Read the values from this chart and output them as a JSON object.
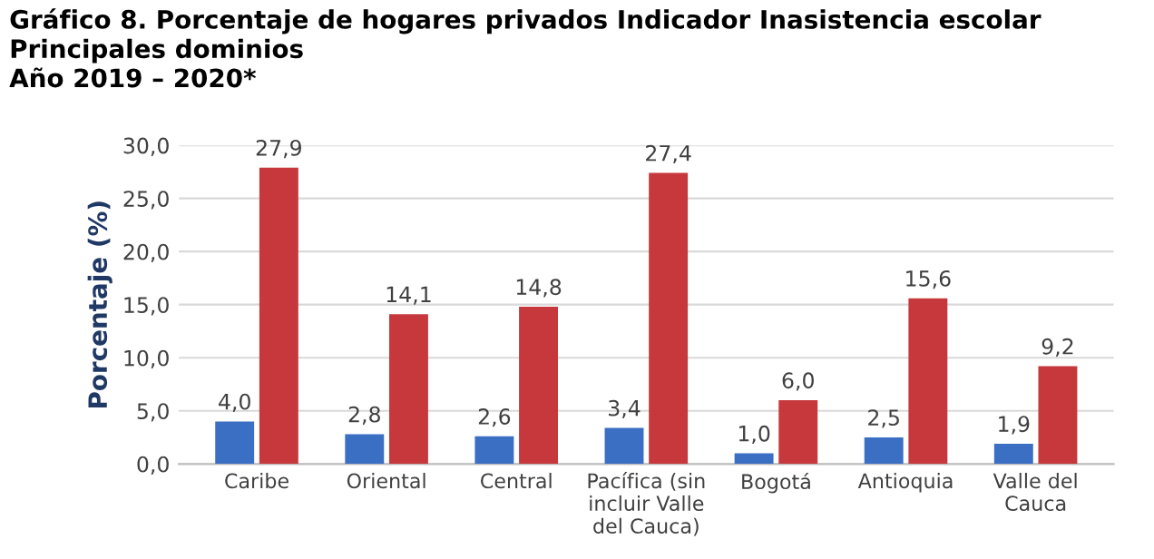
{
  "chart_data": {
    "type": "bar",
    "title": "Gráfico 8. Porcentaje de hogares privados Indicador Inasistencia escolar\nPrincipales dominios\nAño 2019 – 2020*",
    "ylabel": "Porcentaje (%)",
    "categories": [
      "Caribe",
      "Oriental",
      "Central",
      "Pacífica (sin\nincluir Valle\ndel Cauca)",
      "Bogotá",
      "Antioquia",
      "Valle del\nCauca"
    ],
    "series": [
      {
        "color": "#3b6fc4",
        "values": [
          4.0,
          2.8,
          2.6,
          3.4,
          1.0,
          2.5,
          1.9
        ],
        "value_labels": [
          "4,0",
          "2,8",
          "2,6",
          "3,4",
          "1,0",
          "2,5",
          "1,9"
        ]
      },
      {
        "color": "#c6383b",
        "values": [
          27.9,
          14.1,
          14.8,
          27.4,
          6.0,
          15.6,
          9.2
        ],
        "value_labels": [
          "27,9",
          "14,1",
          "14,8",
          "27,4",
          "6,0",
          "15,6",
          "9,2"
        ]
      }
    ],
    "ylim": [
      0,
      30
    ],
    "yticks": [
      {
        "value": 0,
        "label": "0,0"
      },
      {
        "value": 5,
        "label": "5,0"
      },
      {
        "value": 10,
        "label": "10,0"
      },
      {
        "value": 15,
        "label": "15,0"
      },
      {
        "value": 20,
        "label": "20,0"
      },
      {
        "value": 25,
        "label": "25,0"
      },
      {
        "value": 30,
        "label": "30,0"
      }
    ],
    "grid": "y",
    "legend": false
  }
}
